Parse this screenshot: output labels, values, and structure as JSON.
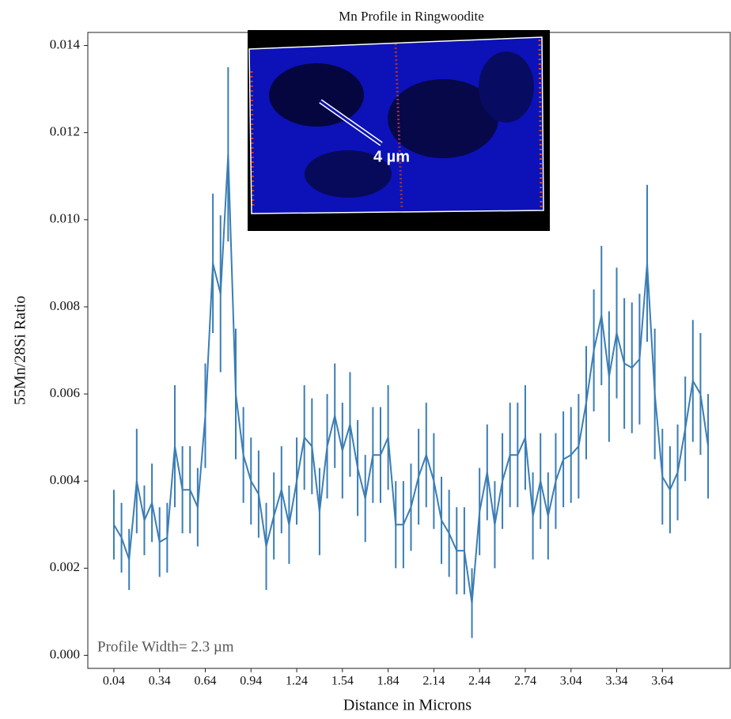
{
  "chart_data": {
    "type": "line",
    "title": "Mn Profile in Ringwoodite",
    "x_label": "Distance in Microns",
    "y_label": "55Mn/28Si Ratio",
    "annotations": [
      "Profile Width= 2.3 µm",
      "4 µm"
    ],
    "xlim": [
      -0.131,
      4.085
    ],
    "ylim": [
      -0.0003,
      0.0143
    ],
    "xticks": [
      0.04,
      0.34,
      0.64,
      0.94,
      1.24,
      1.54,
      1.84,
      2.14,
      2.44,
      2.74,
      3.04,
      3.34,
      3.64
    ],
    "yticks": [
      {
        "value": 0,
        "label": "0.000"
      },
      0.002,
      0.004,
      0.006,
      0.008,
      {
        "value": 0.01,
        "label": "0.010"
      },
      0.012,
      0.014
    ],
    "x": [
      0.04,
      0.09,
      0.14,
      0.19,
      0.24,
      0.29,
      0.34,
      0.39,
      0.44,
      0.49,
      0.54,
      0.59,
      0.64,
      0.69,
      0.74,
      0.79,
      0.84,
      0.89,
      0.94,
      0.99,
      1.04,
      1.09,
      1.14,
      1.19,
      1.24,
      1.29,
      1.34,
      1.39,
      1.44,
      1.49,
      1.54,
      1.59,
      1.64,
      1.69,
      1.74,
      1.79,
      1.84,
      1.89,
      1.94,
      1.99,
      2.04,
      2.09,
      2.14,
      2.19,
      2.24,
      2.29,
      2.34,
      2.39,
      2.44,
      2.49,
      2.54,
      2.59,
      2.64,
      2.69,
      2.74,
      2.79,
      2.84,
      2.89,
      2.94,
      2.99,
      3.04,
      3.09,
      3.14,
      3.19,
      3.24,
      3.29,
      3.34,
      3.39,
      3.44,
      3.49,
      3.54,
      3.59,
      3.64,
      3.69,
      3.74,
      3.79,
      3.84,
      3.89,
      3.94
    ],
    "series": [
      {
        "color": "#3a7db5",
        "values": [
          0.003,
          0.0027,
          0.0022,
          0.004,
          0.0031,
          0.0035,
          0.0026,
          0.0027,
          0.0048,
          0.0038,
          0.0038,
          0.0034,
          0.0055,
          0.009,
          0.0083,
          0.0115,
          0.006,
          0.0046,
          0.004,
          0.0037,
          0.0025,
          0.0032,
          0.0038,
          0.003,
          0.004,
          0.005,
          0.0048,
          0.0033,
          0.0048,
          0.0055,
          0.0047,
          0.0053,
          0.0043,
          0.0036,
          0.0046,
          0.0046,
          0.005,
          0.003,
          0.003,
          0.0034,
          0.0041,
          0.0046,
          0.004,
          0.0031,
          0.0028,
          0.0024,
          0.0024,
          0.0012,
          0.0033,
          0.0042,
          0.003,
          0.004,
          0.0046,
          0.0046,
          0.005,
          0.0032,
          0.004,
          0.0032,
          0.004,
          0.0045,
          0.0046,
          0.0048,
          0.0058,
          0.007,
          0.0078,
          0.0064,
          0.0074,
          0.0067,
          0.0066,
          0.0068,
          0.009,
          0.006,
          0.0041,
          0.0038,
          0.0042,
          0.0052,
          0.0063,
          0.006,
          0.0048
        ],
        "errors": [
          0.0008,
          0.0008,
          0.0007,
          0.0012,
          0.0008,
          0.0009,
          0.0008,
          0.0008,
          0.0014,
          0.001,
          0.001,
          0.0009,
          0.0012,
          0.0016,
          0.0018,
          0.002,
          0.0015,
          0.0011,
          0.001,
          0.001,
          0.001,
          0.001,
          0.001,
          0.0009,
          0.001,
          0.0012,
          0.0011,
          0.001,
          0.0012,
          0.0012,
          0.0011,
          0.0012,
          0.0011,
          0.001,
          0.0011,
          0.0011,
          0.0012,
          0.001,
          0.001,
          0.001,
          0.0011,
          0.0012,
          0.0011,
          0.001,
          0.001,
          0.001,
          0.001,
          0.0008,
          0.001,
          0.0011,
          0.001,
          0.0011,
          0.0012,
          0.0012,
          0.0012,
          0.001,
          0.0011,
          0.001,
          0.0011,
          0.0011,
          0.0011,
          0.0012,
          0.0013,
          0.0014,
          0.0016,
          0.0015,
          0.0015,
          0.0015,
          0.0015,
          0.0015,
          0.0018,
          0.0015,
          0.0011,
          0.001,
          0.0011,
          0.0012,
          0.0014,
          0.0014,
          0.0012
        ]
      }
    ]
  }
}
